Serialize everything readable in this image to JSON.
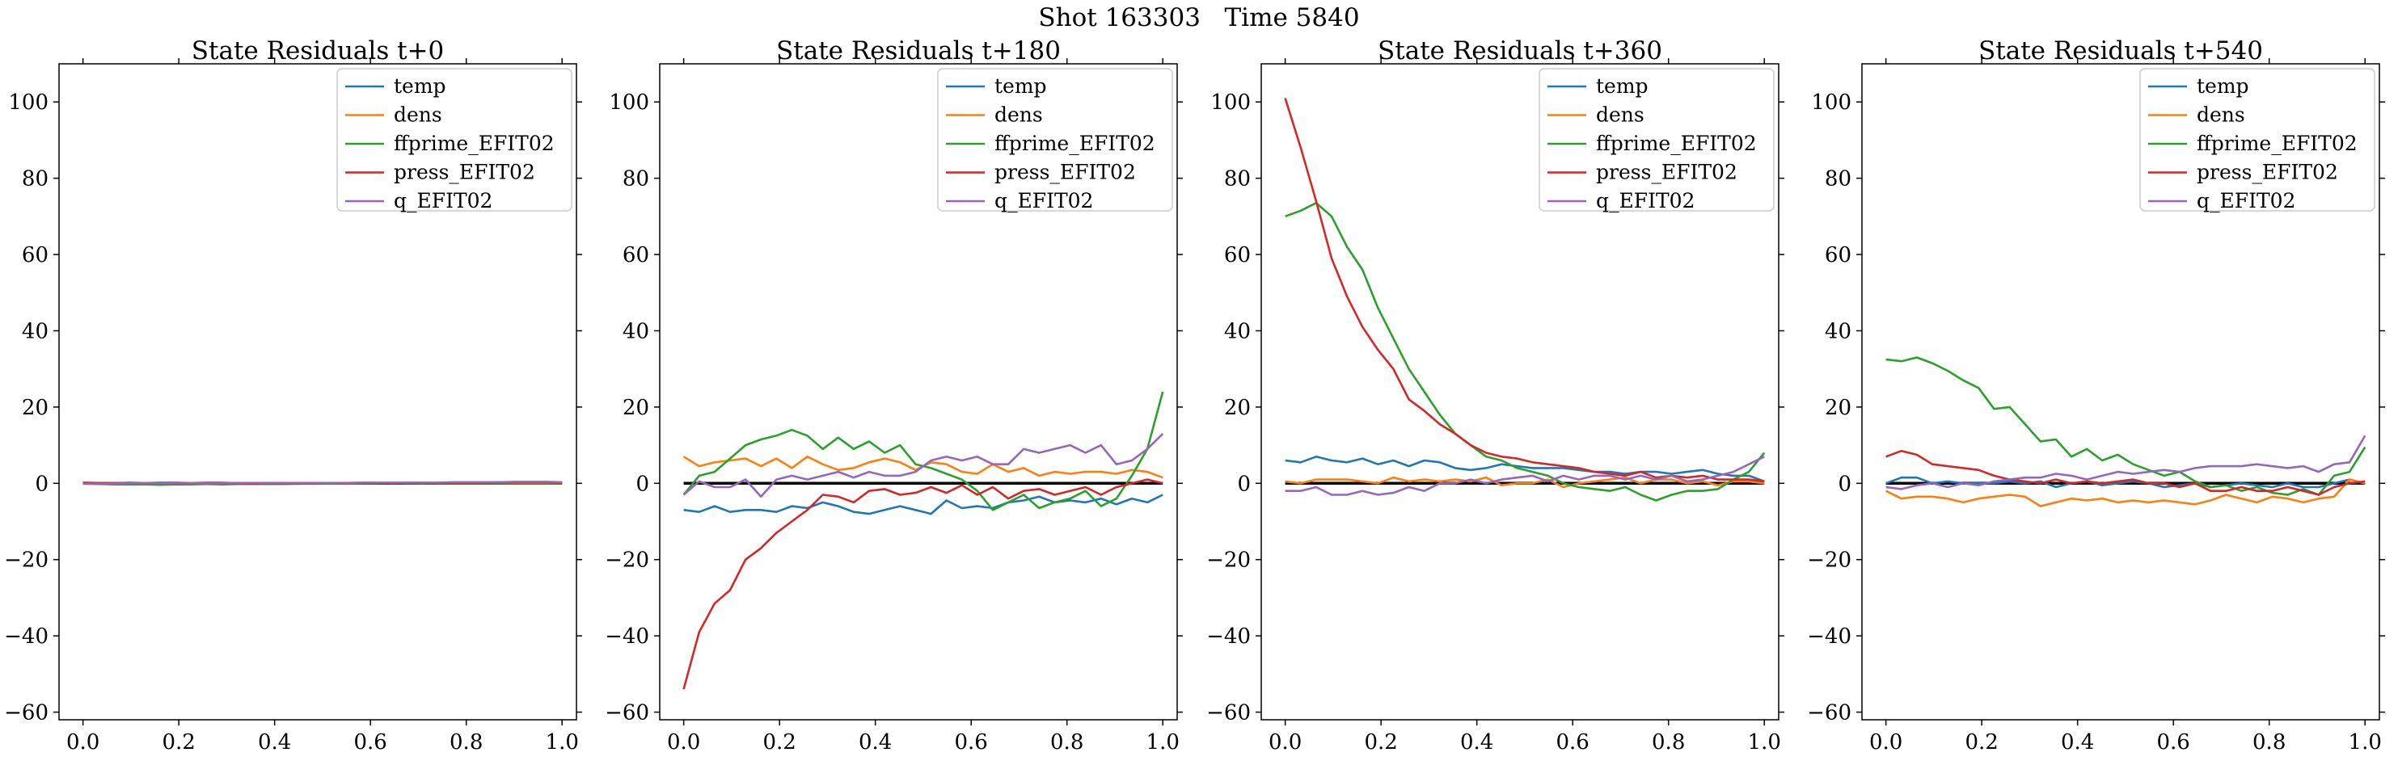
{
  "figure": {
    "suptitle": "Shot 163303   Time 5840"
  },
  "style": {
    "series_colors": {
      "temp": "#1f77b4",
      "dens": "#ff7f0e",
      "ffprime_EFIT02": "#2ca02c",
      "press_EFIT02": "#d62728",
      "q_EFIT02": "#9467bd"
    },
    "zero_line_color": "#000000"
  },
  "chart_data": [
    {
      "type": "line",
      "title": "State Residuals t+0",
      "xlabel": "",
      "ylabel": "",
      "xlim": [
        -0.05,
        1.03
      ],
      "ylim": [
        -62,
        110
      ],
      "xticks": [
        0.0,
        0.2,
        0.4,
        0.6,
        0.8,
        1.0
      ],
      "xtick_labels": [
        "0.0",
        "0.2",
        "0.4",
        "0.6",
        "0.8",
        "1.0"
      ],
      "yticks": [
        -60,
        -40,
        -20,
        0,
        20,
        40,
        60,
        80,
        100
      ],
      "ytick_labels": [
        "−60",
        "−40",
        "−20",
        "0",
        "20",
        "40",
        "60",
        "80",
        "100"
      ],
      "grid": false,
      "legend_position": "top-right",
      "zero_line": true,
      "x": [
        0.0,
        0.0323,
        0.0645,
        0.0968,
        0.129,
        0.1613,
        0.1935,
        0.2258,
        0.2581,
        0.2903,
        0.3226,
        0.3548,
        0.3871,
        0.4194,
        0.4516,
        0.4839,
        0.5161,
        0.5484,
        0.5806,
        0.6129,
        0.6452,
        0.6774,
        0.7097,
        0.7419,
        0.7742,
        0.8065,
        0.8387,
        0.871,
        0.9032,
        0.9355,
        0.9677,
        1.0
      ],
      "series": [
        {
          "name": "temp",
          "values": [
            0,
            0,
            -0.1,
            -0.2,
            -0.1,
            -0.1,
            -0.2,
            -0.1,
            -0.1,
            -0.1,
            -0.1,
            0,
            -0.1,
            0,
            -0.1,
            0,
            0,
            0,
            0,
            0.1,
            0,
            0.1,
            0,
            0.1,
            0.1,
            0.1,
            0.2,
            0.1,
            0.2,
            0.2,
            0.1,
            0.1
          ]
        },
        {
          "name": "dens",
          "values": [
            0.1,
            0,
            0.1,
            0,
            0.1,
            0,
            0,
            0.1,
            0,
            0,
            0.1,
            0,
            0,
            0,
            0.1,
            0,
            0,
            0,
            0,
            0,
            0.1,
            0,
            0,
            0,
            0,
            0,
            0,
            0,
            0,
            0,
            0,
            0
          ]
        },
        {
          "name": "ffprime_EFIT02",
          "values": [
            -0.1,
            -0.2,
            -0.3,
            -0.3,
            -0.3,
            -0.4,
            -0.3,
            -0.3,
            -0.2,
            -0.3,
            -0.2,
            -0.2,
            -0.2,
            -0.2,
            -0.1,
            -0.1,
            -0.1,
            -0.1,
            0,
            0,
            0,
            0,
            0,
            0.1,
            0.1,
            0.1,
            0.1,
            0.1,
            0.2,
            0.2,
            0.2,
            0.1
          ]
        },
        {
          "name": "press_EFIT02",
          "values": [
            0.2,
            0.1,
            0.1,
            0,
            0,
            0,
            -0.1,
            0,
            -0.1,
            -0.1,
            0,
            -0.1,
            0,
            0,
            0,
            0,
            0.1,
            0,
            0.1,
            0.1,
            0,
            0.1,
            0.1,
            0.1,
            0.2,
            0.2,
            0.2,
            0.3,
            0.3,
            0.3,
            0.3,
            0.2
          ]
        },
        {
          "name": "q_EFIT02",
          "values": [
            -0.1,
            -0.1,
            -0.1,
            0,
            0,
            0,
            0,
            0,
            0,
            0,
            0.1,
            0.1,
            0.1,
            0.1,
            0.1,
            0.1,
            0.1,
            0.1,
            0.2,
            0.2,
            0.2,
            0.2,
            0.2,
            0.2,
            0.3,
            0.3,
            0.3,
            0.3,
            0.4,
            0.4,
            0.4,
            0.3
          ]
        }
      ]
    },
    {
      "type": "line",
      "title": "State Residuals t+180",
      "xlabel": "",
      "ylabel": "",
      "xlim": [
        -0.05,
        1.03
      ],
      "ylim": [
        -62,
        110
      ],
      "xticks": [
        0.0,
        0.2,
        0.4,
        0.6,
        0.8,
        1.0
      ],
      "xtick_labels": [
        "0.0",
        "0.2",
        "0.4",
        "0.6",
        "0.8",
        "1.0"
      ],
      "yticks": [
        -60,
        -40,
        -20,
        0,
        20,
        40,
        60,
        80,
        100
      ],
      "ytick_labels": [
        "−60",
        "−40",
        "−20",
        "0",
        "20",
        "40",
        "60",
        "80",
        "100"
      ],
      "grid": false,
      "legend_position": "top-right",
      "zero_line": true,
      "x": [
        0.0,
        0.0323,
        0.0645,
        0.0968,
        0.129,
        0.1613,
        0.1935,
        0.2258,
        0.2581,
        0.2903,
        0.3226,
        0.3548,
        0.3871,
        0.4194,
        0.4516,
        0.4839,
        0.5161,
        0.5484,
        0.5806,
        0.6129,
        0.6452,
        0.6774,
        0.7097,
        0.7419,
        0.7742,
        0.8065,
        0.8387,
        0.871,
        0.9032,
        0.9355,
        0.9677,
        1.0
      ],
      "series": [
        {
          "name": "temp",
          "values": [
            -7,
            -7.5,
            -6,
            -7.5,
            -7,
            -7,
            -7.5,
            -6,
            -6.5,
            -5,
            -6,
            -7.5,
            -8,
            -7,
            -6,
            -7,
            -8,
            -4.5,
            -6.5,
            -6,
            -6.5,
            -5,
            -4.5,
            -3.5,
            -5,
            -4.5,
            -5,
            -4,
            -5.5,
            -4,
            -5,
            -3
          ]
        },
        {
          "name": "dens",
          "values": [
            7,
            4.5,
            5.5,
            6,
            6.5,
            4.5,
            6.5,
            4,
            7,
            5,
            3.5,
            4,
            5.5,
            6.5,
            5.5,
            3.5,
            5.5,
            5,
            3,
            2.5,
            5,
            3,
            4,
            2,
            3,
            2.5,
            3,
            3,
            2.5,
            3.5,
            3,
            1.5
          ]
        },
        {
          "name": "ffprime_EFIT02",
          "values": [
            -3,
            2,
            3,
            6.5,
            10,
            11.5,
            12.5,
            14,
            12.5,
            9,
            12,
            9,
            11,
            8,
            10,
            5,
            4,
            2.5,
            1,
            -2,
            -7,
            -5,
            -3,
            -6.5,
            -5,
            -4,
            -2,
            -6,
            -4,
            2,
            9,
            24
          ]
        },
        {
          "name": "press_EFIT02",
          "values": [
            -54,
            -39,
            -31.5,
            -28,
            -20,
            -17,
            -13,
            -10,
            -7,
            -3,
            -3.5,
            -5,
            -2,
            -1.5,
            -3,
            -2.5,
            -1,
            -2.5,
            -0.5,
            -3,
            -1,
            -4,
            -2,
            -1.5,
            -3,
            -2,
            -1,
            -3,
            -1,
            0,
            1,
            0
          ]
        },
        {
          "name": "q_EFIT02",
          "values": [
            -3,
            0.5,
            -1,
            -1,
            1,
            -3.5,
            1,
            2,
            1,
            2,
            3,
            1.5,
            3,
            2,
            2,
            3,
            6,
            7,
            6,
            7,
            5,
            5,
            9,
            8,
            9,
            10,
            8,
            10,
            5,
            6,
            9,
            13
          ]
        }
      ]
    },
    {
      "type": "line",
      "title": "State Residuals t+360",
      "xlabel": "",
      "ylabel": "",
      "xlim": [
        -0.05,
        1.03
      ],
      "ylim": [
        -62,
        110
      ],
      "xticks": [
        0.0,
        0.2,
        0.4,
        0.6,
        0.8,
        1.0
      ],
      "xtick_labels": [
        "0.0",
        "0.2",
        "0.4",
        "0.6",
        "0.8",
        "1.0"
      ],
      "yticks": [
        -60,
        -40,
        -20,
        0,
        20,
        40,
        60,
        80,
        100
      ],
      "ytick_labels": [
        "−60",
        "−40",
        "−20",
        "0",
        "20",
        "40",
        "60",
        "80",
        "100"
      ],
      "grid": false,
      "legend_position": "top-right",
      "zero_line": true,
      "x": [
        0.0,
        0.0323,
        0.0645,
        0.0968,
        0.129,
        0.1613,
        0.1935,
        0.2258,
        0.2581,
        0.2903,
        0.3226,
        0.3548,
        0.3871,
        0.4194,
        0.4516,
        0.4839,
        0.5161,
        0.5484,
        0.5806,
        0.6129,
        0.6452,
        0.6774,
        0.7097,
        0.7419,
        0.7742,
        0.8065,
        0.8387,
        0.871,
        0.9032,
        0.9355,
        0.9677,
        1.0
      ],
      "series": [
        {
          "name": "temp",
          "values": [
            6,
            5.5,
            7,
            6,
            5.5,
            6.5,
            5,
            6,
            4.5,
            6,
            5.5,
            4,
            3.5,
            4,
            5,
            4.5,
            4,
            4,
            4,
            3.5,
            3,
            3,
            2.5,
            3,
            3,
            2.5,
            3,
            3.5,
            2.5,
            2,
            2,
            0.5
          ]
        },
        {
          "name": "dens",
          "values": [
            0.5,
            0,
            1,
            1,
            1,
            0.5,
            0,
            1.5,
            0.5,
            1,
            0.5,
            1,
            0.5,
            1.5,
            -0.5,
            0,
            0,
            1,
            -1,
            0,
            0.5,
            1,
            1.5,
            0,
            1,
            1,
            0,
            0.5,
            -0.5,
            0.5,
            0.5,
            0
          ]
        },
        {
          "name": "ffprime_EFIT02",
          "values": [
            70,
            71.5,
            73.5,
            70,
            62,
            56,
            46,
            38,
            30,
            24,
            18,
            13,
            10,
            7,
            6,
            4,
            3,
            2,
            0,
            -1,
            -1.5,
            -2,
            -1,
            -3,
            -4.5,
            -3,
            -2,
            -2,
            -1.5,
            1,
            3,
            8
          ]
        },
        {
          "name": "press_EFIT02",
          "values": [
            101,
            88,
            74,
            59,
            49,
            41,
            35,
            30,
            22,
            19,
            15.5,
            13,
            10,
            8,
            7,
            6.5,
            5.5,
            5,
            4.5,
            4,
            3,
            2.5,
            2,
            3,
            1.5,
            2,
            1.5,
            2,
            1,
            1,
            1,
            0.5
          ]
        },
        {
          "name": "q_EFIT02",
          "values": [
            -2,
            -2,
            -1,
            -3,
            -3,
            -2,
            -3,
            -2.5,
            -1,
            -2,
            0,
            0,
            1,
            0,
            1,
            1.5,
            2,
            0.5,
            2,
            1,
            2,
            2,
            1,
            2,
            1,
            2,
            0.5,
            1,
            2,
            3,
            5,
            7
          ]
        }
      ]
    },
    {
      "type": "line",
      "title": "State Residuals t+540",
      "xlabel": "",
      "ylabel": "",
      "xlim": [
        -0.05,
        1.03
      ],
      "ylim": [
        -62,
        110
      ],
      "xticks": [
        0.0,
        0.2,
        0.4,
        0.6,
        0.8,
        1.0
      ],
      "xtick_labels": [
        "0.0",
        "0.2",
        "0.4",
        "0.6",
        "0.8",
        "1.0"
      ],
      "yticks": [
        -60,
        -40,
        -20,
        0,
        20,
        40,
        60,
        80,
        100
      ],
      "ytick_labels": [
        "−60",
        "−40",
        "−20",
        "0",
        "20",
        "40",
        "60",
        "80",
        "100"
      ],
      "grid": false,
      "legend_position": "top-right",
      "zero_line": true,
      "x": [
        0.0,
        0.0323,
        0.0645,
        0.0968,
        0.129,
        0.1613,
        0.1935,
        0.2258,
        0.2581,
        0.2903,
        0.3226,
        0.3548,
        0.3871,
        0.4194,
        0.4516,
        0.4839,
        0.5161,
        0.5484,
        0.5806,
        0.6129,
        0.6452,
        0.6774,
        0.7097,
        0.7419,
        0.7742,
        0.8065,
        0.8387,
        0.871,
        0.9032,
        0.9355,
        0.9677,
        1.0
      ],
      "series": [
        {
          "name": "temp",
          "values": [
            0,
            1.5,
            1.5,
            0,
            0.5,
            0,
            0,
            0,
            0.5,
            0,
            0.5,
            -1,
            0,
            0.5,
            -0.5,
            0,
            0.5,
            0,
            -1,
            -0.5,
            0,
            -1,
            -0.5,
            0,
            -0.5,
            -1,
            0,
            -1,
            -1,
            0,
            1,
            0
          ]
        },
        {
          "name": "dens",
          "values": [
            -2,
            -4,
            -3.5,
            -3.5,
            -4,
            -5,
            -4,
            -3.5,
            -3,
            -3.5,
            -6,
            -5,
            -4,
            -4.5,
            -4,
            -5,
            -4.5,
            -5,
            -4.5,
            -5,
            -5.5,
            -4.5,
            -3,
            -4,
            -5,
            -3.5,
            -4,
            -5,
            -4,
            -3.5,
            1,
            0
          ]
        },
        {
          "name": "ffprime_EFIT02",
          "values": [
            32.5,
            32,
            33,
            31.5,
            29.5,
            27,
            25,
            19.5,
            20,
            15.5,
            11,
            11.5,
            7,
            9,
            6,
            7.5,
            5,
            3.5,
            2,
            3,
            0.5,
            -1,
            -0.5,
            -2,
            -1,
            -2.5,
            -3,
            -1.5,
            -3,
            2,
            3,
            9.5
          ]
        },
        {
          "name": "press_EFIT02",
          "values": [
            7,
            8.5,
            7.5,
            5,
            4.5,
            4,
            3.5,
            2,
            1,
            0.5,
            0,
            1,
            0,
            0.5,
            0,
            0.5,
            1,
            0,
            0,
            -1,
            0,
            -2,
            -2,
            -1,
            -2,
            -2,
            -1,
            -2,
            -3,
            -1,
            0,
            0.5
          ]
        },
        {
          "name": "q_EFIT02",
          "values": [
            -1,
            -1.5,
            -0.5,
            0,
            -1,
            0,
            -0.5,
            0.5,
            1,
            1.5,
            1.5,
            2.5,
            2,
            1,
            2,
            3,
            2.5,
            3,
            3.5,
            3,
            4,
            4.5,
            4.5,
            4.5,
            5,
            4.5,
            4,
            4.5,
            3,
            5,
            5.5,
            12.5
          ]
        }
      ]
    }
  ]
}
